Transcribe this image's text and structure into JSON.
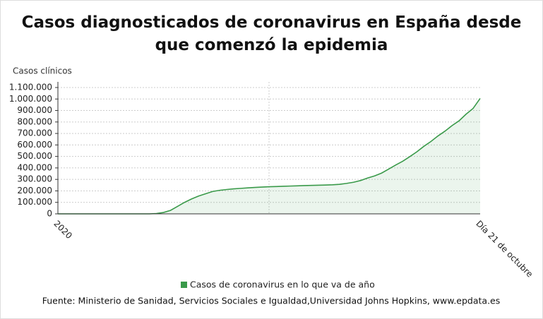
{
  "chart_data": {
    "type": "area",
    "title": "Casos diagnosticados de coronavirus en España desde que comenzó la epidemia",
    "y_label": "Casos clínicos",
    "source": "Fuente: Ministerio de Sanidad, Servicios Sociales e Igualdad,Universidad Johns Hopkins, www.epdata.es",
    "categories": [
      "2020",
      null,
      null,
      null,
      null,
      null,
      null,
      null,
      null,
      null,
      null,
      null,
      null,
      null,
      null,
      null,
      null,
      null,
      null,
      null,
      null,
      null,
      null,
      null,
      null,
      null,
      null,
      null,
      null,
      null,
      null,
      null,
      null,
      null,
      null,
      null,
      null,
      null,
      null,
      null,
      null,
      null,
      null,
      null,
      null,
      null,
      null,
      null,
      null,
      null,
      null,
      null,
      null,
      null,
      null,
      null,
      null,
      null,
      null,
      null,
      "Día 21 de octubre"
    ],
    "series": [
      {
        "name": "Casos de coronavirus en lo que va de año",
        "color": "#3a9a4a",
        "values": [
          0,
          0,
          0,
          0,
          0,
          0,
          0,
          0,
          0,
          0,
          0,
          0,
          0,
          0,
          3000,
          12000,
          30000,
          65000,
          100000,
          130000,
          155000,
          175000,
          195000,
          205000,
          212000,
          218000,
          222000,
          226000,
          230000,
          233000,
          236000,
          238000,
          240000,
          242000,
          244000,
          246000,
          248000,
          249000,
          251000,
          253000,
          257000,
          265000,
          275000,
          290000,
          312000,
          330000,
          355000,
          390000,
          425000,
          458000,
          498000,
          540000,
          588000,
          630000,
          678000,
          720000,
          768000,
          810000,
          868000,
          918000,
          1005000
        ]
      }
    ],
    "ylim": [
      0,
      1100000
    ],
    "yticks": [
      0,
      {
        "value": 100000,
        "label": "100.000"
      },
      {
        "value": 200000,
        "label": "200.000"
      },
      {
        "value": 300000,
        "label": "300.000"
      },
      {
        "value": 400000,
        "label": "400.000"
      },
      {
        "value": 500000,
        "label": "500.000"
      },
      {
        "value": 600000,
        "label": "600.000"
      },
      {
        "value": 700000,
        "label": "700.000"
      },
      {
        "value": 800000,
        "label": "800.000"
      },
      {
        "value": 900000,
        "label": "900.000"
      },
      {
        "value": 1000000,
        "label": "1.000.000"
      },
      {
        "value": 1100000,
        "label": "1.100.000"
      }
    ],
    "grid": true
  }
}
